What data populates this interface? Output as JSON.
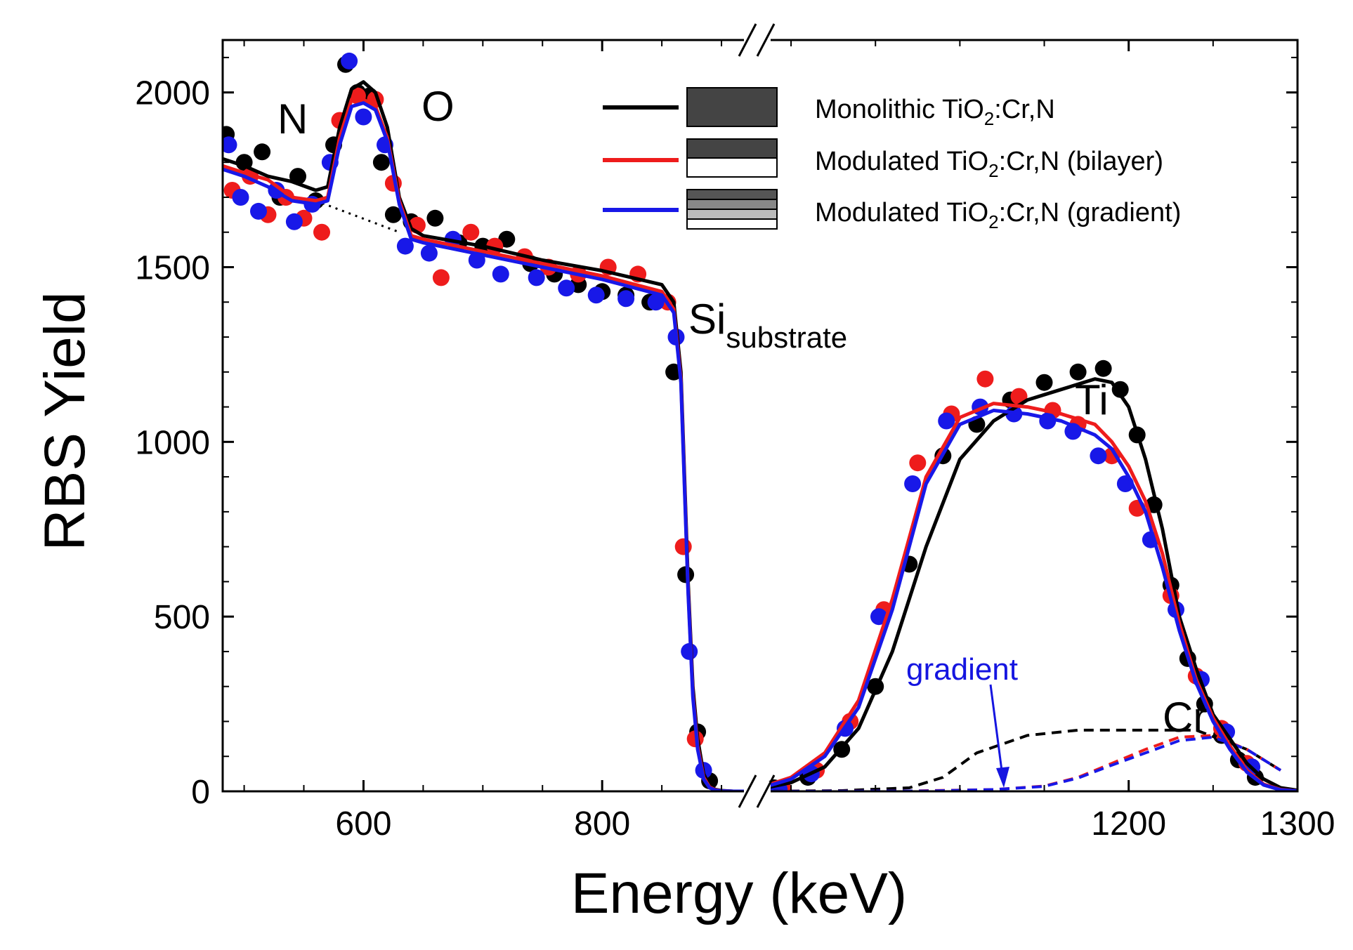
{
  "chart_data": {
    "type": "scatter",
    "title": "",
    "xlabel": "Energy (keV)",
    "ylabel": "RBS Yield",
    "xlim": [
      482,
      1300
    ],
    "x_break": [
      930,
      980
    ],
    "ylim": [
      0,
      2150
    ],
    "x_ticks": [
      600,
      800,
      1200,
      1300
    ],
    "y_ticks": [
      0,
      500,
      1000,
      1500,
      2000
    ],
    "grid": false,
    "legend_position": "top-right",
    "colors": {
      "monolithic": "#000000",
      "bilayer": "#ee1c1c",
      "gradient": "#1818e8"
    },
    "series": [
      {
        "name": "Monolithic TiO2:Cr,N",
        "legend_label": "Monolithic TiO",
        "legend_sub": "2",
        "legend_suffix": ":Cr,N",
        "color": "#000000",
        "fit_x": [
          482,
          500,
          520,
          540,
          560,
          570,
          580,
          590,
          600,
          610,
          620,
          630,
          640,
          650,
          700,
          750,
          800,
          850,
          860,
          866,
          870,
          872,
          876,
          880,
          885,
          890,
          895,
          900,
          910,
          930,
          980,
          1000,
          1020,
          1040,
          1060,
          1080,
          1100,
          1120,
          1140,
          1160,
          1180,
          1190,
          1200,
          1210,
          1220,
          1230,
          1240,
          1250,
          1260,
          1270,
          1280,
          1290,
          1300
        ],
        "fit_y": [
          1810,
          1790,
          1760,
          1745,
          1720,
          1730,
          1900,
          2010,
          2030,
          2000,
          1900,
          1700,
          1610,
          1590,
          1560,
          1520,
          1490,
          1450,
          1400,
          1200,
          800,
          600,
          300,
          150,
          50,
          15,
          5,
          2,
          0,
          0,
          5,
          25,
          70,
          180,
          400,
          700,
          950,
          1060,
          1120,
          1150,
          1180,
          1170,
          1100,
          950,
          750,
          500,
          350,
          220,
          150,
          80,
          35,
          10,
          3
        ],
        "scatter_x": [
          485,
          500,
          515,
          530,
          545,
          560,
          575,
          585,
          595,
          605,
          615,
          625,
          640,
          660,
          680,
          700,
          720,
          740,
          760,
          780,
          800,
          820,
          840,
          860,
          870,
          880,
          890,
          990,
          1010,
          1030,
          1050,
          1070,
          1090,
          1110,
          1130,
          1150,
          1170,
          1185,
          1195,
          1205,
          1215,
          1225,
          1235,
          1245,
          1255,
          1265,
          1275
        ],
        "scatter_y": [
          1880,
          1800,
          1830,
          1700,
          1760,
          1690,
          1850,
          2080,
          2000,
          1990,
          1800,
          1650,
          1630,
          1640,
          1570,
          1560,
          1580,
          1510,
          1480,
          1450,
          1430,
          1420,
          1400,
          1200,
          620,
          170,
          30,
          10,
          40,
          120,
          300,
          650,
          960,
          1050,
          1120,
          1170,
          1200,
          1210,
          1150,
          1020,
          820,
          590,
          380,
          250,
          160,
          90,
          40
        ],
        "dashed_x": [
          980,
          1030,
          1070,
          1090,
          1110,
          1140,
          1170,
          1200,
          1240,
          1270,
          1290
        ],
        "dashed_y": [
          0,
          2,
          10,
          40,
          110,
          160,
          175,
          175,
          175,
          120,
          60
        ]
      },
      {
        "name": "Modulated TiO2:Cr,N (bilayer)",
        "legend_label": "Modulated TiO",
        "legend_sub": "2",
        "legend_suffix": ":Cr,N (bilayer)",
        "color": "#ee1c1c",
        "fit_x": [
          482,
          500,
          520,
          540,
          560,
          570,
          580,
          590,
          600,
          610,
          620,
          630,
          640,
          650,
          700,
          750,
          800,
          850,
          860,
          866,
          870,
          872,
          876,
          880,
          885,
          890,
          895,
          900,
          910,
          930,
          980,
          1000,
          1020,
          1040,
          1060,
          1080,
          1100,
          1120,
          1140,
          1160,
          1180,
          1190,
          1200,
          1210,
          1220,
          1230,
          1240,
          1250,
          1260,
          1270,
          1280,
          1290,
          1300
        ],
        "fit_y": [
          1790,
          1770,
          1750,
          1700,
          1690,
          1700,
          1870,
          1980,
          1980,
          1960,
          1870,
          1690,
          1590,
          1580,
          1545,
          1510,
          1475,
          1430,
          1380,
          1180,
          780,
          580,
          280,
          130,
          40,
          12,
          4,
          1,
          0,
          0,
          8,
          40,
          110,
          260,
          550,
          900,
          1070,
          1110,
          1100,
          1080,
          1050,
          1000,
          930,
          830,
          680,
          480,
          320,
          210,
          130,
          60,
          20,
          5,
          1
        ],
        "scatter_x": [
          490,
          505,
          520,
          535,
          550,
          565,
          580,
          595,
          610,
          625,
          645,
          665,
          690,
          710,
          735,
          755,
          780,
          805,
          830,
          855,
          868,
          878,
          995,
          1015,
          1035,
          1055,
          1075,
          1095,
          1115,
          1135,
          1155,
          1170,
          1190,
          1205,
          1225,
          1240,
          1255,
          1270
        ],
        "scatter_y": [
          1720,
          1760,
          1650,
          1700,
          1640,
          1600,
          1920,
          1990,
          1980,
          1740,
          1620,
          1470,
          1600,
          1560,
          1530,
          1500,
          1480,
          1500,
          1480,
          1400,
          700,
          150,
          10,
          60,
          200,
          520,
          940,
          1080,
          1180,
          1130,
          1090,
          1050,
          960,
          810,
          560,
          330,
          180,
          80
        ],
        "dashed_x": [
          980,
          1070,
          1120,
          1150,
          1170,
          1190,
          1210,
          1230,
          1250,
          1270,
          1290
        ],
        "dashed_y": [
          0,
          1,
          5,
          15,
          40,
          80,
          120,
          155,
          160,
          120,
          60
        ]
      },
      {
        "name": "Modulated TiO2:Cr,N (gradient)",
        "legend_label": "Modulated TiO",
        "legend_sub": "2",
        "legend_suffix": ":Cr,N (gradient)",
        "color": "#1818e8",
        "fit_x": [
          482,
          500,
          520,
          540,
          560,
          570,
          580,
          590,
          600,
          610,
          620,
          630,
          640,
          650,
          700,
          750,
          800,
          850,
          860,
          866,
          870,
          872,
          876,
          880,
          885,
          890,
          895,
          900,
          910,
          930,
          980,
          1000,
          1020,
          1040,
          1060,
          1080,
          1100,
          1120,
          1140,
          1160,
          1180,
          1190,
          1200,
          1210,
          1220,
          1230,
          1240,
          1250,
          1260,
          1270,
          1280,
          1290,
          1300
        ],
        "fit_y": [
          1780,
          1760,
          1730,
          1690,
          1680,
          1690,
          1850,
          1960,
          1970,
          1950,
          1860,
          1680,
          1580,
          1570,
          1535,
          1500,
          1465,
          1420,
          1370,
          1170,
          770,
          570,
          270,
          120,
          35,
          10,
          3,
          1,
          0,
          0,
          6,
          35,
          100,
          240,
          520,
          880,
          1050,
          1090,
          1080,
          1060,
          1020,
          980,
          900,
          800,
          640,
          460,
          310,
          200,
          120,
          55,
          18,
          4,
          1
        ],
        "scatter_x": [
          487,
          497,
          512,
          527,
          542,
          557,
          572,
          588,
          600,
          618,
          635,
          655,
          675,
          695,
          715,
          745,
          770,
          795,
          820,
          845,
          862,
          873,
          885,
          993,
          1012,
          1032,
          1052,
          1072,
          1092,
          1112,
          1132,
          1152,
          1167,
          1182,
          1198,
          1213,
          1228,
          1243,
          1258,
          1273
        ],
        "scatter_y": [
          1850,
          1700,
          1660,
          1720,
          1630,
          1680,
          1800,
          2090,
          1930,
          1850,
          1560,
          1540,
          1580,
          1520,
          1480,
          1470,
          1440,
          1420,
          1410,
          1400,
          1300,
          400,
          60,
          5,
          50,
          180,
          500,
          880,
          1060,
          1100,
          1080,
          1060,
          1030,
          960,
          880,
          720,
          520,
          320,
          170,
          70
        ],
        "dashed_x": [
          980,
          1080,
          1120,
          1150,
          1170,
          1190,
          1210,
          1230,
          1250,
          1270,
          1290
        ],
        "dashed_y": [
          0,
          1,
          5,
          14,
          38,
          75,
          110,
          145,
          155,
          120,
          60
        ]
      }
    ],
    "background_line": {
      "x": [
        560,
        630
      ],
      "y": [
        1690,
        1600
      ]
    },
    "annotations": {
      "N": "N",
      "O": "O",
      "Si": "Si",
      "Si_sub": "substrate",
      "Ti": "Ti",
      "Cr": "Cr",
      "gradient": "gradient"
    }
  }
}
